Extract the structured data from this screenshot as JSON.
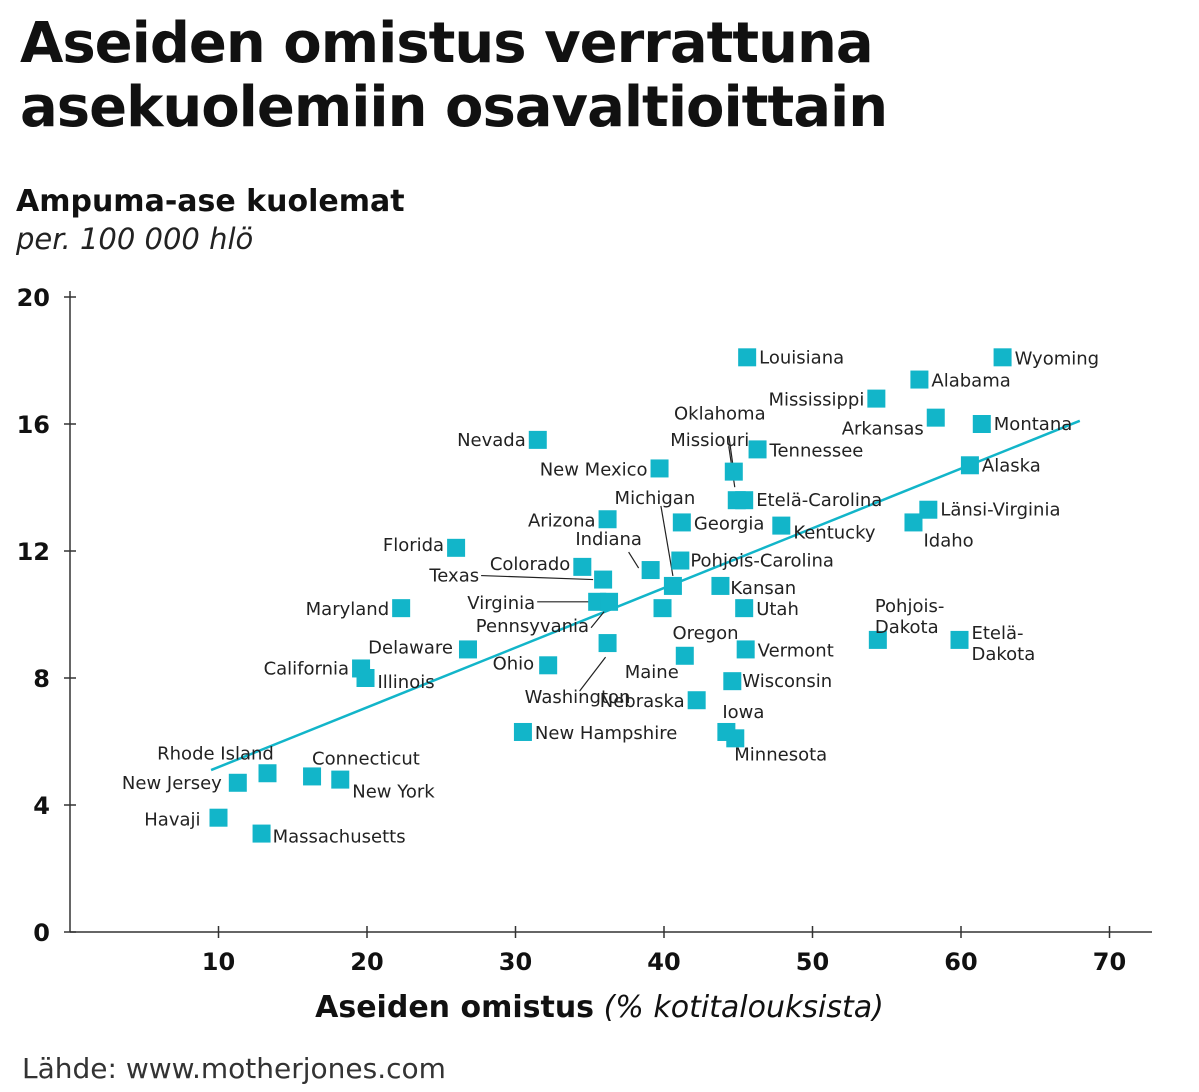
{
  "title": {
    "line1": "Aseiden omistus verrattuna",
    "line2": "asekuolemiin osavaltioittain"
  },
  "source": "Lähde: www.motherjones.com",
  "colors": {
    "marker": "#12b5c9",
    "trend": "#12b5c9",
    "axis": "#333333",
    "text": "#111111"
  },
  "chart_data": {
    "type": "scatter",
    "title": "Aseiden omistus verrattuna asekuolemiin osavaltioittain",
    "ylabel": "Ampuma-ase kuolemat",
    "ylabel_sub": "per. 100 000 hlö",
    "xlabel": "Aseiden omistus",
    "xlabel_sub": "(% kotitalouksista)",
    "xlim": [
      0,
      70
    ],
    "ylim": [
      0,
      20
    ],
    "xticks": [
      10,
      20,
      30,
      40,
      50,
      60,
      70
    ],
    "yticks": [
      0,
      4,
      8,
      12,
      16,
      20
    ],
    "grid": false,
    "trendline": {
      "x": [
        9.5,
        68
      ],
      "y": [
        5.1,
        16.1
      ]
    },
    "points": [
      {
        "name": "Louisiana",
        "x": 45.6,
        "y": 18.1
      },
      {
        "name": "Wyoming",
        "x": 62.8,
        "y": 18.1
      },
      {
        "name": "Alabama",
        "x": 57.2,
        "y": 17.4
      },
      {
        "name": "Mississippi",
        "x": 54.3,
        "y": 16.8
      },
      {
        "name": "Arkansas",
        "x": 58.3,
        "y": 16.2
      },
      {
        "name": "Montana",
        "x": 61.4,
        "y": 16.0
      },
      {
        "name": "Nevada",
        "x": 31.5,
        "y": 15.5
      },
      {
        "name": "Tennessee",
        "x": 46.3,
        "y": 15.2
      },
      {
        "name": "New Mexico",
        "x": 39.7,
        "y": 14.6
      },
      {
        "name": "Alaska",
        "x": 60.6,
        "y": 14.7
      },
      {
        "name": "Oklahoma",
        "x": 44.7,
        "y": 14.5
      },
      {
        "name": "Missiouri",
        "x": 44.9,
        "y": 13.6
      },
      {
        "name": "Etelä-Carolina",
        "x": 45.4,
        "y": 13.6
      },
      {
        "name": "Länsi-Virginia",
        "x": 57.8,
        "y": 13.3
      },
      {
        "name": "Arizona",
        "x": 36.2,
        "y": 13.0
      },
      {
        "name": "Georgia",
        "x": 41.2,
        "y": 12.9
      },
      {
        "name": "Kentucky",
        "x": 47.9,
        "y": 12.8
      },
      {
        "name": "Idaho",
        "x": 56.8,
        "y": 12.9
      },
      {
        "name": "Florida",
        "x": 26.0,
        "y": 12.1
      },
      {
        "name": "Pohjois-Carolina",
        "x": 41.1,
        "y": 11.7
      },
      {
        "name": "Colorado",
        "x": 34.5,
        "y": 11.5
      },
      {
        "name": "Indiana",
        "x": 39.1,
        "y": 11.4
      },
      {
        "name": "Texas",
        "x": 35.9,
        "y": 11.1
      },
      {
        "name": "Michigan",
        "x": 40.6,
        "y": 10.9
      },
      {
        "name": "Kansan",
        "x": 43.8,
        "y": 10.9
      },
      {
        "name": "Virginia",
        "x": 35.5,
        "y": 10.4
      },
      {
        "name": "Pennsyvania",
        "x": 36.3,
        "y": 10.4
      },
      {
        "name": "Maryland",
        "x": 22.3,
        "y": 10.2
      },
      {
        "name": "Oregon",
        "x": 39.9,
        "y": 10.2
      },
      {
        "name": "Utah",
        "x": 45.4,
        "y": 10.2
      },
      {
        "name": "Pohjois-Dakota",
        "x": 54.4,
        "y": 9.2
      },
      {
        "name": "Etelä-Dakota",
        "x": 59.9,
        "y": 9.2
      },
      {
        "name": "Washington",
        "x": 36.2,
        "y": 9.1
      },
      {
        "name": "Delaware",
        "x": 26.8,
        "y": 8.9
      },
      {
        "name": "Vermont",
        "x": 45.5,
        "y": 8.9
      },
      {
        "name": "Maine",
        "x": 41.4,
        "y": 8.7
      },
      {
        "name": "Ohio",
        "x": 32.2,
        "y": 8.4
      },
      {
        "name": "California",
        "x": 19.6,
        "y": 8.3
      },
      {
        "name": "Illinois",
        "x": 19.9,
        "y": 8.0
      },
      {
        "name": "Wisconsin",
        "x": 44.6,
        "y": 7.9
      },
      {
        "name": "Nebraska",
        "x": 42.2,
        "y": 7.3
      },
      {
        "name": "New Hampshire",
        "x": 30.5,
        "y": 6.3
      },
      {
        "name": "Iowa",
        "x": 44.2,
        "y": 6.3
      },
      {
        "name": "Minnesota",
        "x": 44.8,
        "y": 6.1
      },
      {
        "name": "Rhode Island",
        "x": 13.3,
        "y": 5.0
      },
      {
        "name": "Connecticut",
        "x": 16.3,
        "y": 4.9
      },
      {
        "name": "New Jersey",
        "x": 11.3,
        "y": 4.7
      },
      {
        "name": "New York",
        "x": 18.2,
        "y": 4.8
      },
      {
        "name": "Havaji",
        "x": 10.0,
        "y": 3.6
      },
      {
        "name": "Massachusetts",
        "x": 12.9,
        "y": 3.1
      }
    ]
  }
}
